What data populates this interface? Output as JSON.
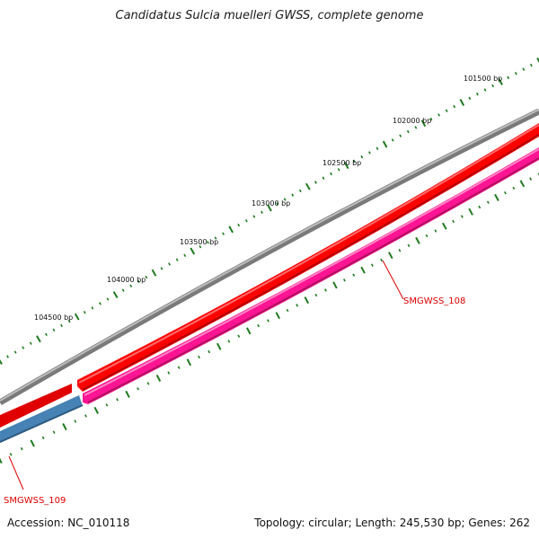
{
  "title": "Candidatus Sulcia muelleri GWSS, complete genome",
  "footer": {
    "accession": "Accession: NC_010118",
    "stats": "Topology: circular; Length: 245,530 bp; Genes: 262"
  },
  "colors": {
    "backbone": "#7a7a7a",
    "forward_gene": "#ff0000",
    "reverse_gene": "#ff1493",
    "other_gene": "#4682b4",
    "tick": "#1e7a1e",
    "gene_label": "#dd0000"
  },
  "ticks": [
    {
      "label": "101500 bp"
    },
    {
      "label": "102000 bp"
    },
    {
      "label": "102500 bp"
    },
    {
      "label": "103000 bp"
    },
    {
      "label": "103500 bp"
    },
    {
      "label": "104000 bp"
    },
    {
      "label": "104500 bp"
    }
  ],
  "genes": [
    {
      "name": "SMGWSS_108",
      "strand": "reverse",
      "color": "#ff1493"
    },
    {
      "name": "SMGWSS_109",
      "strand": "forward",
      "color": "#4682b4"
    }
  ]
}
